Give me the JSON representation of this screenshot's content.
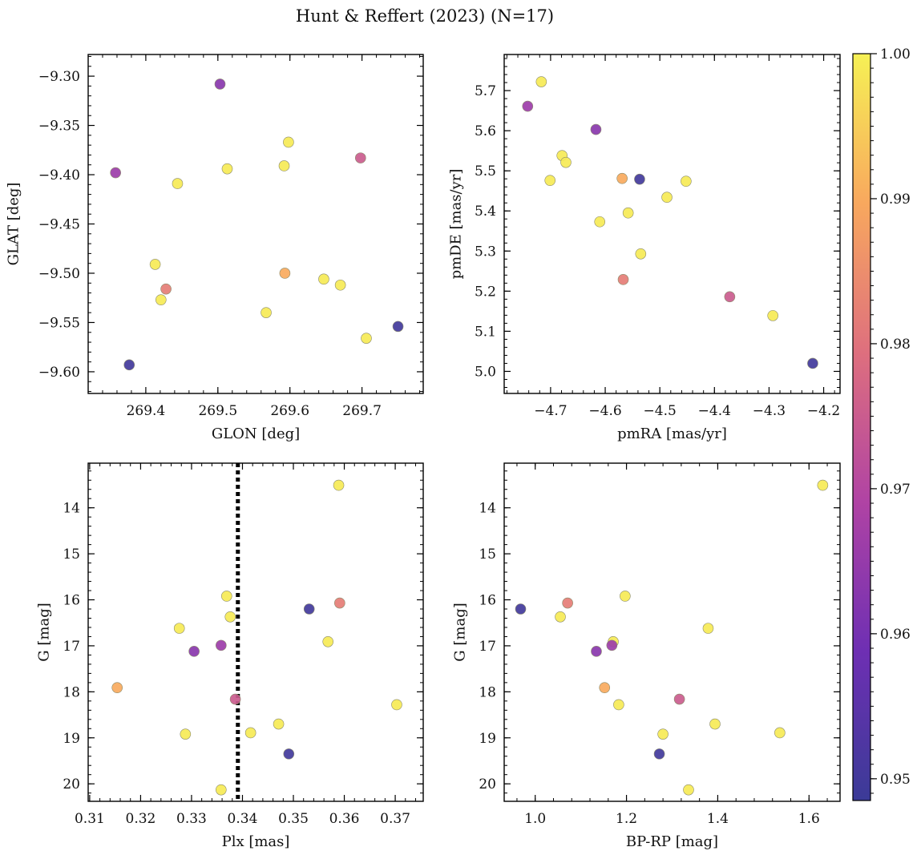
{
  "title": "Hunt & Reffert (2023) (N=17)",
  "colorbar": {
    "min": 0.9485,
    "max": 1.0,
    "ticks": [
      0.95,
      0.96,
      0.97,
      0.98,
      0.99,
      1.0
    ],
    "tick_labels": [
      "0.95",
      "0.96",
      "0.97",
      "0.98",
      "0.99",
      "1.00"
    ],
    "colormap": "plasma"
  },
  "chart_data": [
    {
      "type": "scatter",
      "xlabel": "GLON [deg]",
      "ylabel": "GLAT [deg]",
      "xlim": [
        269.32,
        269.785
      ],
      "ylim": [
        -9.622,
        -9.278
      ],
      "xticks": [
        269.4,
        269.5,
        269.6,
        269.7
      ],
      "xtick_labels": [
        "269.4",
        "269.5",
        "269.6",
        "269.7"
      ],
      "yticks": [
        -9.6,
        -9.55,
        -9.5,
        -9.45,
        -9.4,
        -9.35,
        -9.3
      ],
      "ytick_labels": [
        "−9.60",
        "−9.55",
        "−9.50",
        "−9.45",
        "−9.40",
        "−9.35",
        "−9.30"
      ],
      "points": [
        {
          "x": 269.503,
          "y": -9.308,
          "c": 0.963
        },
        {
          "x": 269.358,
          "y": -9.398,
          "c": 0.966
        },
        {
          "x": 269.598,
          "y": -9.367,
          "c": 0.999
        },
        {
          "x": 269.698,
          "y": -9.383,
          "c": 0.975
        },
        {
          "x": 269.513,
          "y": -9.394,
          "c": 0.999
        },
        {
          "x": 269.592,
          "y": -9.391,
          "c": 0.999
        },
        {
          "x": 269.444,
          "y": -9.409,
          "c": 0.999
        },
        {
          "x": 269.413,
          "y": -9.491,
          "c": 0.999
        },
        {
          "x": 269.593,
          "y": -9.5,
          "c": 0.99
        },
        {
          "x": 269.428,
          "y": -9.516,
          "c": 0.982
        },
        {
          "x": 269.647,
          "y": -9.506,
          "c": 0.999
        },
        {
          "x": 269.67,
          "y": -9.512,
          "c": 0.999
        },
        {
          "x": 269.421,
          "y": -9.527,
          "c": 0.999
        },
        {
          "x": 269.567,
          "y": -9.54,
          "c": 0.999
        },
        {
          "x": 269.75,
          "y": -9.554,
          "c": 0.95
        },
        {
          "x": 269.706,
          "y": -9.566,
          "c": 0.999
        },
        {
          "x": 269.377,
          "y": -9.593,
          "c": 0.95
        }
      ]
    },
    {
      "type": "scatter",
      "xlabel": "pmRA [mas/yr]",
      "ylabel": "pmDE [mas/yr]",
      "xlim": [
        -4.785,
        -4.17
      ],
      "ylim": [
        4.945,
        5.79
      ],
      "xticks": [
        -4.7,
        -4.6,
        -4.5,
        -4.4,
        -4.3,
        -4.2
      ],
      "xtick_labels": [
        "−4.7",
        "−4.6",
        "−4.5",
        "−4.4",
        "−4.3",
        "−4.2"
      ],
      "yticks": [
        5.0,
        5.1,
        5.2,
        5.3,
        5.4,
        5.5,
        5.6,
        5.7
      ],
      "ytick_labels": [
        "5.0",
        "5.1",
        "5.2",
        "5.3",
        "5.4",
        "5.5",
        "5.6",
        "5.7"
      ],
      "points": [
        {
          "x": -4.717,
          "y": 5.722,
          "c": 0.999
        },
        {
          "x": -4.742,
          "y": 5.661,
          "c": 0.966
        },
        {
          "x": -4.617,
          "y": 5.603,
          "c": 0.963
        },
        {
          "x": -4.679,
          "y": 5.538,
          "c": 0.999
        },
        {
          "x": -4.672,
          "y": 5.521,
          "c": 0.999
        },
        {
          "x": -4.701,
          "y": 5.476,
          "c": 0.999
        },
        {
          "x": -4.569,
          "y": 5.481,
          "c": 0.99
        },
        {
          "x": -4.537,
          "y": 5.479,
          "c": 0.95
        },
        {
          "x": -4.452,
          "y": 5.474,
          "c": 0.999
        },
        {
          "x": -4.487,
          "y": 5.434,
          "c": 0.999
        },
        {
          "x": -4.558,
          "y": 5.395,
          "c": 0.999
        },
        {
          "x": -4.61,
          "y": 5.373,
          "c": 0.999
        },
        {
          "x": -4.535,
          "y": 5.293,
          "c": 0.999
        },
        {
          "x": -4.567,
          "y": 5.229,
          "c": 0.982
        },
        {
          "x": -4.372,
          "y": 5.186,
          "c": 0.975
        },
        {
          "x": -4.293,
          "y": 5.139,
          "c": 0.999
        },
        {
          "x": -4.22,
          "y": 5.02,
          "c": 0.95
        }
      ]
    },
    {
      "type": "scatter",
      "xlabel": "Plx [mas]",
      "ylabel": "G [mag]",
      "xlim": [
        0.3097,
        0.3755
      ],
      "ylim": [
        20.38,
        13.03
      ],
      "invert_y": true,
      "vline": {
        "x": 0.3391,
        "style": "dotted"
      },
      "xticks": [
        0.31,
        0.32,
        0.33,
        0.34,
        0.35,
        0.36,
        0.37
      ],
      "xtick_labels": [
        "0.31",
        "0.32",
        "0.33",
        "0.34",
        "0.35",
        "0.36",
        "0.37"
      ],
      "yticks": [
        14,
        15,
        16,
        17,
        18,
        19,
        20
      ],
      "ytick_labels": [
        "14",
        "15",
        "16",
        "17",
        "18",
        "19",
        "20"
      ],
      "points": [
        {
          "x": 0.3589,
          "y": 13.51,
          "c": 0.999
        },
        {
          "x": 0.3369,
          "y": 15.92,
          "c": 0.999
        },
        {
          "x": 0.3591,
          "y": 16.07,
          "c": 0.982
        },
        {
          "x": 0.3531,
          "y": 16.2,
          "c": 0.95
        },
        {
          "x": 0.3376,
          "y": 16.37,
          "c": 0.999
        },
        {
          "x": 0.3276,
          "y": 16.62,
          "c": 0.999
        },
        {
          "x": 0.3568,
          "y": 16.91,
          "c": 0.999
        },
        {
          "x": 0.3358,
          "y": 16.99,
          "c": 0.966
        },
        {
          "x": 0.3305,
          "y": 17.12,
          "c": 0.963
        },
        {
          "x": 0.3154,
          "y": 17.91,
          "c": 0.99
        },
        {
          "x": 0.3386,
          "y": 18.16,
          "c": 0.975
        },
        {
          "x": 0.3703,
          "y": 18.28,
          "c": 0.999
        },
        {
          "x": 0.3471,
          "y": 18.7,
          "c": 0.999
        },
        {
          "x": 0.3416,
          "y": 18.89,
          "c": 0.999
        },
        {
          "x": 0.3288,
          "y": 18.92,
          "c": 0.999
        },
        {
          "x": 0.3491,
          "y": 19.35,
          "c": 0.95
        },
        {
          "x": 0.3358,
          "y": 20.13,
          "c": 0.999
        }
      ]
    },
    {
      "type": "scatter",
      "xlabel": "BP-RP [mag]",
      "ylabel": "G [mag]",
      "xlim": [
        0.932,
        1.668
      ],
      "ylim": [
        20.38,
        13.03
      ],
      "invert_y": true,
      "xticks": [
        1.0,
        1.2,
        1.4,
        1.6
      ],
      "xtick_labels": [
        "1.0",
        "1.2",
        "1.4",
        "1.6"
      ],
      "yticks": [
        14,
        15,
        16,
        17,
        18,
        19,
        20
      ],
      "ytick_labels": [
        "14",
        "15",
        "16",
        "17",
        "18",
        "19",
        "20"
      ],
      "points": [
        {
          "x": 1.63,
          "y": 13.51,
          "c": 0.999
        },
        {
          "x": 1.197,
          "y": 15.92,
          "c": 0.999
        },
        {
          "x": 1.071,
          "y": 16.07,
          "c": 0.982
        },
        {
          "x": 0.968,
          "y": 16.2,
          "c": 0.95
        },
        {
          "x": 1.055,
          "y": 16.37,
          "c": 0.999
        },
        {
          "x": 1.379,
          "y": 16.62,
          "c": 0.999
        },
        {
          "x": 1.171,
          "y": 16.91,
          "c": 0.999
        },
        {
          "x": 1.168,
          "y": 16.99,
          "c": 0.966
        },
        {
          "x": 1.134,
          "y": 17.12,
          "c": 0.963
        },
        {
          "x": 1.152,
          "y": 17.91,
          "c": 0.99
        },
        {
          "x": 1.316,
          "y": 18.16,
          "c": 0.975
        },
        {
          "x": 1.183,
          "y": 18.28,
          "c": 0.999
        },
        {
          "x": 1.394,
          "y": 18.7,
          "c": 0.999
        },
        {
          "x": 1.536,
          "y": 18.89,
          "c": 0.999
        },
        {
          "x": 1.28,
          "y": 18.92,
          "c": 0.999
        },
        {
          "x": 1.272,
          "y": 19.35,
          "c": 0.95
        },
        {
          "x": 1.336,
          "y": 20.13,
          "c": 0.999
        }
      ]
    }
  ]
}
